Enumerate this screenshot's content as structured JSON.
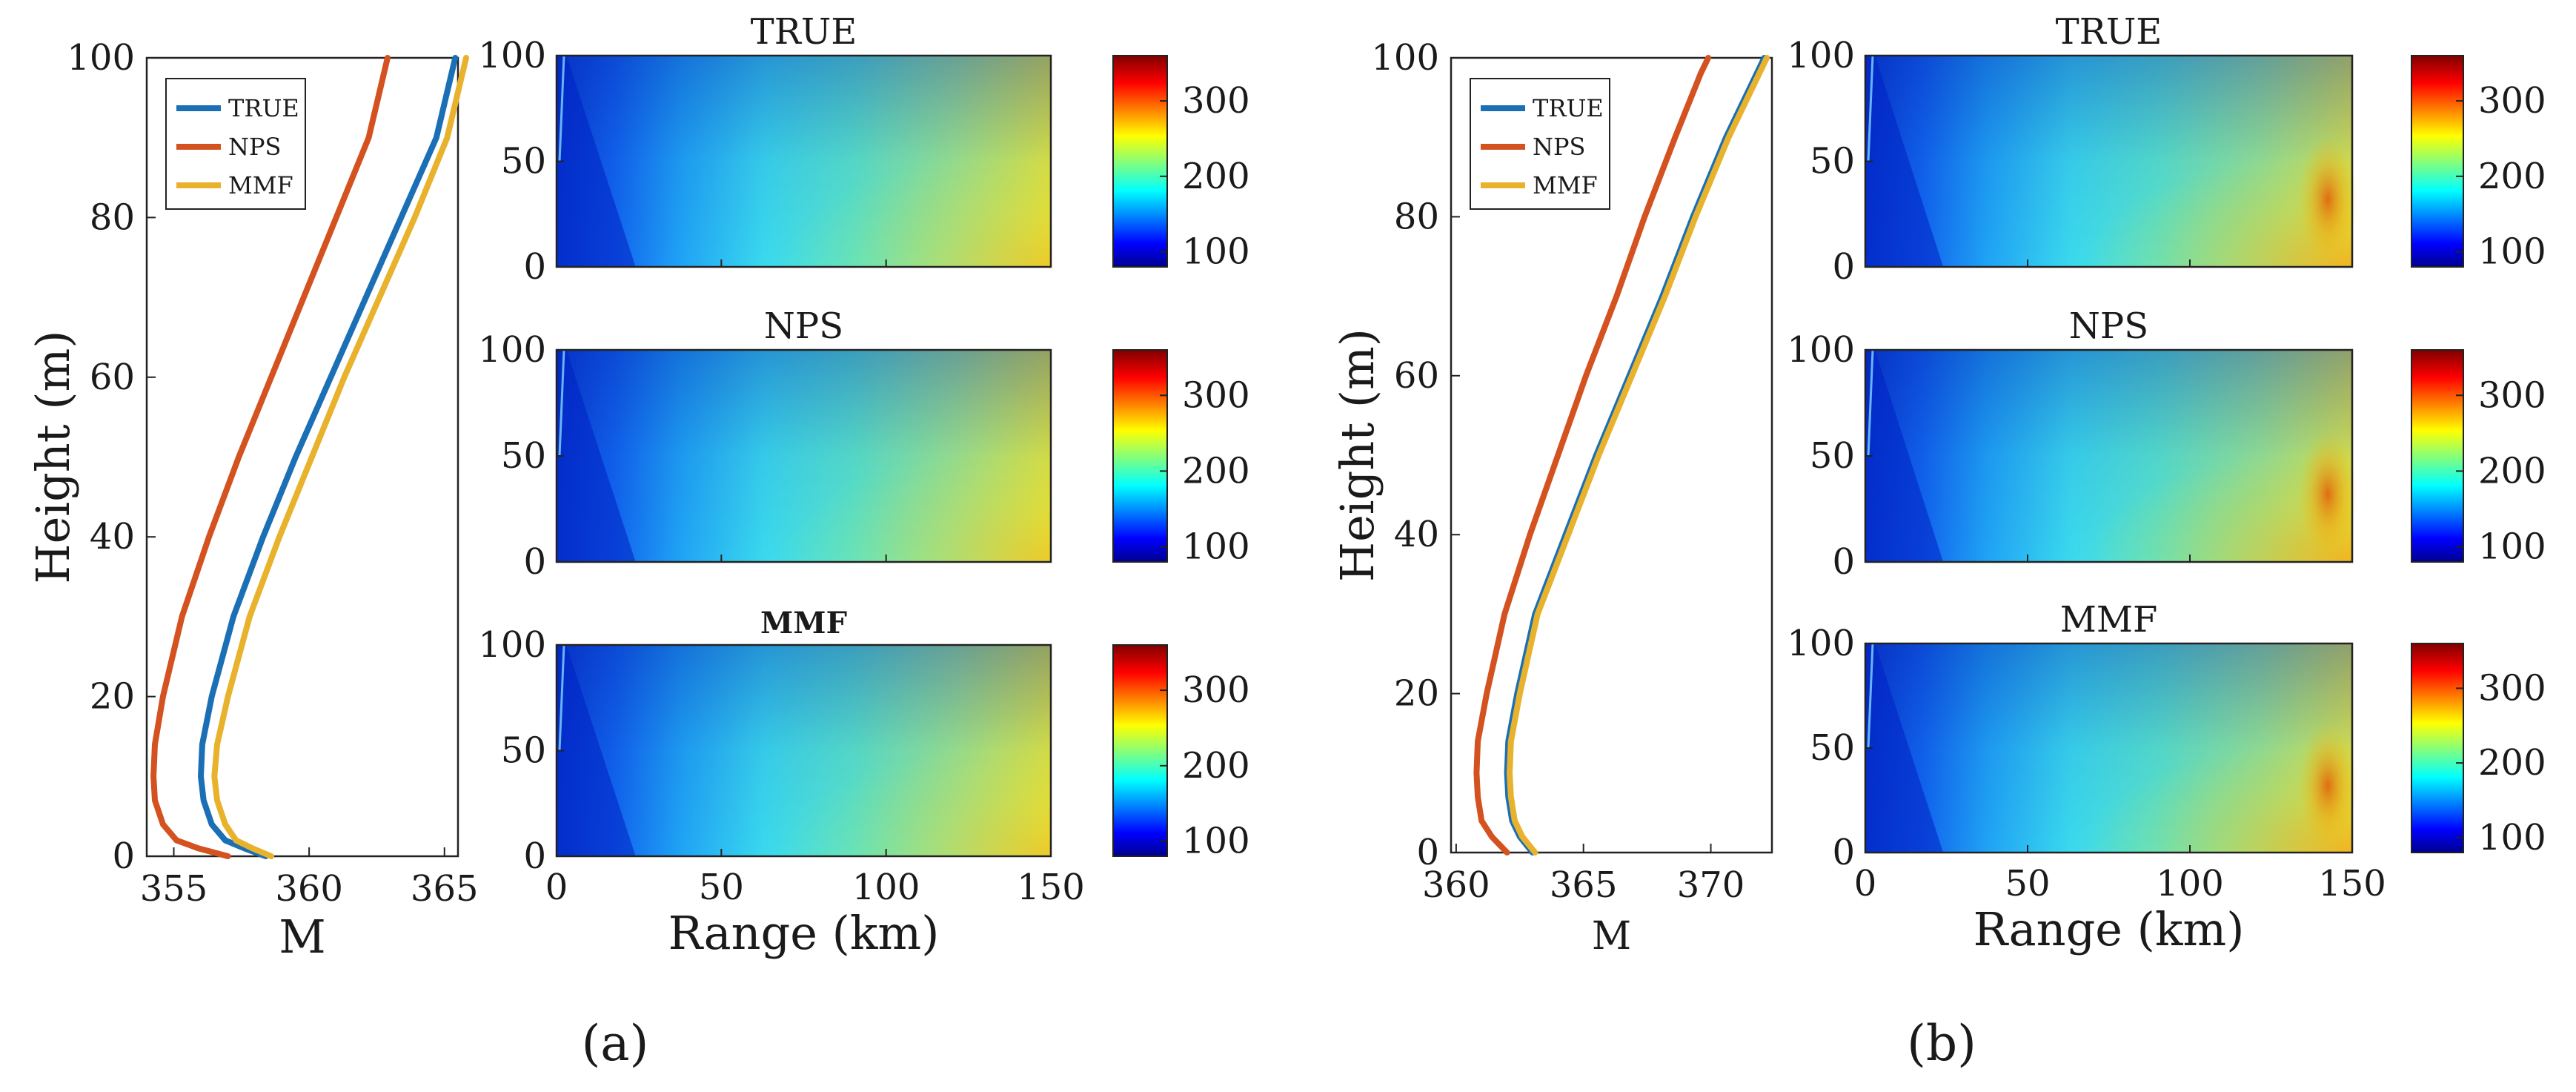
{
  "chart_data": [
    {
      "panel": "(a)",
      "charts": [
        {
          "type": "line",
          "xlabel": "M",
          "ylabel": "Height (m)",
          "xlim": [
            354,
            365.5
          ],
          "ylim": [
            0,
            100
          ],
          "xticks": [
            355,
            360,
            365
          ],
          "yticks": [
            0,
            20,
            40,
            60,
            80,
            100
          ],
          "legend_position": "top-left",
          "series": [
            {
              "name": "TRUE",
              "color": "#1a6fb5",
              "x": [
                358.4,
                357.6,
                356.9,
                356.4,
                356.1,
                356.0,
                356.05,
                356.4,
                357.2,
                358.3,
                359.5,
                360.8,
                362.1,
                363.4,
                364.7,
                365.4
              ],
              "y": [
                0,
                1,
                2,
                4,
                7,
                10,
                14,
                20,
                30,
                40,
                50,
                60,
                70,
                80,
                90,
                100
              ]
            },
            {
              "name": "NPS",
              "color": "#d35220",
              "x": [
                357.0,
                355.9,
                355.1,
                354.6,
                354.3,
                354.25,
                354.3,
                354.6,
                355.3,
                356.3,
                357.4,
                358.6,
                359.8,
                361.0,
                362.2,
                362.9
              ],
              "y": [
                0,
                1,
                2,
                4,
                7,
                10,
                14,
                20,
                30,
                40,
                50,
                60,
                70,
                80,
                90,
                100
              ]
            },
            {
              "name": "MMF",
              "color": "#e8b22c",
              "x": [
                358.6,
                357.9,
                357.3,
                356.9,
                356.6,
                356.5,
                356.6,
                357.0,
                357.8,
                358.9,
                360.1,
                361.3,
                362.6,
                363.9,
                365.1,
                365.8
              ],
              "y": [
                0,
                1,
                2,
                4,
                7,
                10,
                14,
                20,
                30,
                40,
                50,
                60,
                70,
                80,
                90,
                100
              ]
            }
          ]
        },
        {
          "type": "heatmap",
          "title": "TRUE",
          "xlim": [
            0,
            150
          ],
          "ylim": [
            0,
            100
          ],
          "xticks": [
            0,
            50,
            100,
            150
          ],
          "yticks": [
            0,
            50,
            100
          ],
          "colorbar": {
            "range": [
              80,
              360
            ],
            "ticks": [
              100,
              200,
              300
            ]
          },
          "max_value": 250
        },
        {
          "type": "heatmap",
          "title": "NPS",
          "xlim": [
            0,
            150
          ],
          "ylim": [
            0,
            100
          ],
          "xticks": [
            0,
            50,
            100,
            150
          ],
          "yticks": [
            0,
            50,
            100
          ],
          "colorbar": {
            "range": [
              80,
              360
            ],
            "ticks": [
              100,
              200,
              300
            ]
          },
          "max_value": 250
        },
        {
          "type": "heatmap",
          "title": "MMF",
          "xlabel": "Range (km)",
          "xlim": [
            0,
            150
          ],
          "ylim": [
            0,
            100
          ],
          "xticks": [
            0,
            50,
            100,
            150
          ],
          "yticks": [
            0,
            50,
            100
          ],
          "colorbar": {
            "range": [
              80,
              360
            ],
            "ticks": [
              100,
              200,
              300
            ]
          },
          "max_value": 245
        }
      ]
    },
    {
      "panel": "(b)",
      "charts": [
        {
          "type": "line",
          "xlabel": "M",
          "ylabel": "Height (m)",
          "xlim": [
            359.8,
            372.4
          ],
          "ylim": [
            0,
            100
          ],
          "xticks": [
            360,
            365,
            370
          ],
          "yticks": [
            0,
            20,
            40,
            60,
            80,
            100
          ],
          "legend_position": "top-left",
          "series": [
            {
              "name": "TRUE",
              "color": "#1a6fb5",
              "x": [
                363.0,
                362.5,
                362.2,
                362.05,
                362.0,
                362.05,
                362.4,
                363.1,
                364.3,
                365.5,
                366.8,
                368.1,
                369.3,
                370.6,
                371.8,
                372.1
              ],
              "y": [
                0,
                2,
                4,
                7,
                10,
                14,
                20,
                30,
                40,
                50,
                60,
                70,
                80,
                90,
                98,
                100
              ]
            },
            {
              "name": "NPS",
              "color": "#d35220",
              "x": [
                362.0,
                361.4,
                361.0,
                360.85,
                360.8,
                360.85,
                361.2,
                361.9,
                362.9,
                364.0,
                365.1,
                366.3,
                367.4,
                368.6,
                369.6,
                369.9
              ],
              "y": [
                0,
                2,
                4,
                7,
                10,
                14,
                20,
                30,
                40,
                50,
                60,
                70,
                80,
                90,
                98,
                100
              ]
            },
            {
              "name": "MMF",
              "color": "#e8b22c",
              "x": [
                363.1,
                362.6,
                362.3,
                362.15,
                362.1,
                362.15,
                362.5,
                363.2,
                364.4,
                365.6,
                366.9,
                368.2,
                369.4,
                370.7,
                371.9,
                372.2
              ],
              "y": [
                0,
                2,
                4,
                7,
                10,
                14,
                20,
                30,
                40,
                50,
                60,
                70,
                80,
                90,
                98,
                100
              ]
            }
          ]
        },
        {
          "type": "heatmap",
          "title": "TRUE",
          "xlim": [
            0,
            150
          ],
          "ylim": [
            0,
            100
          ],
          "xticks": [
            0,
            50,
            100,
            150
          ],
          "yticks": [
            0,
            50,
            100
          ],
          "colorbar": {
            "range": [
              80,
              360
            ],
            "ticks": [
              100,
              200,
              300
            ]
          },
          "max_value": 280
        },
        {
          "type": "heatmap",
          "title": "NPS",
          "xlim": [
            0,
            150
          ],
          "ylim": [
            0,
            100
          ],
          "xticks": [
            0,
            50,
            100,
            150
          ],
          "yticks": [
            0,
            50,
            100
          ],
          "colorbar": {
            "range": [
              80,
              360
            ],
            "ticks": [
              100,
              200,
              300
            ]
          },
          "max_value": 285
        },
        {
          "type": "heatmap",
          "title": "MMF",
          "xlabel": "Range (km)",
          "xlim": [
            0,
            150
          ],
          "ylim": [
            0,
            100
          ],
          "xticks": [
            0,
            50,
            100,
            150
          ],
          "yticks": [
            0,
            50,
            100
          ],
          "colorbar": {
            "range": [
              80,
              360
            ],
            "ticks": [
              100,
              200,
              300
            ]
          },
          "max_value": 280
        }
      ]
    }
  ],
  "captions": [
    "(a)",
    "(b)"
  ]
}
